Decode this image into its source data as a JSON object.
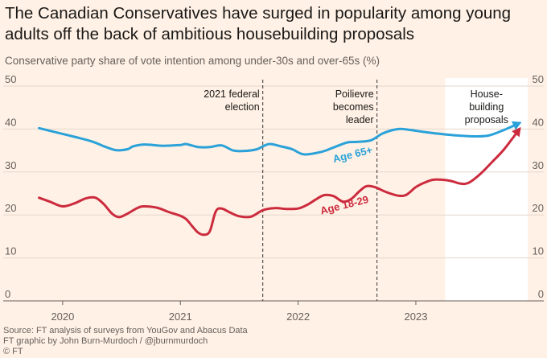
{
  "title": "The Canadian Conservatives have surged in popularity among young adults off the back of ambitious housebuilding proposals",
  "subtitle": "Conservative party share of vote intention among under-30s and over-65s (%)",
  "footer": {
    "source": "Source: FT analysis of surveys from YouGov and Abacus Data",
    "credit": "FT graphic by John Burn-Murdoch / @jburnmurdoch",
    "copyright": "© FT"
  },
  "colors": {
    "background": "#fff1e5",
    "highlight_band": "#ffffff",
    "age_65_plus": "#2aa2d9",
    "age_18_29": "#cc2b3e",
    "grid": "#e3d7cc",
    "axis_text": "#66605c"
  },
  "chart_data": {
    "type": "line",
    "xlim": [
      2019.7,
      2023.95
    ],
    "ylim": [
      0,
      50
    ],
    "y_ticks": [
      0,
      10,
      20,
      30,
      40,
      50
    ],
    "x_ticks": [
      {
        "value": 2020,
        "label": "2020"
      },
      {
        "value": 2021,
        "label": "2021"
      },
      {
        "value": 2022,
        "label": "2022"
      },
      {
        "value": 2023,
        "label": "2023"
      }
    ],
    "grid": true,
    "annotations": [
      {
        "x": 2021.7,
        "lines": [
          "2021 federal",
          "election"
        ],
        "style": "dashed-line"
      },
      {
        "x": 2022.67,
        "lines": [
          "Poilievre",
          "becomes",
          "leader"
        ],
        "style": "dashed-line"
      },
      {
        "x": 2023.25,
        "lines": [
          "House-",
          "building",
          "proposals"
        ],
        "style": "highlight-band",
        "x_end": 2023.95
      }
    ],
    "series": [
      {
        "name": "Age 65+",
        "color_key": "age_65_plus",
        "x": [
          2019.8,
          2019.95,
          2020.1,
          2020.25,
          2020.35,
          2020.45,
          2020.55,
          2020.6,
          2020.7,
          2020.85,
          2021.0,
          2021.05,
          2021.15,
          2021.25,
          2021.35,
          2021.45,
          2021.55,
          2021.65,
          2021.75,
          2021.85,
          2021.95,
          2022.05,
          2022.2,
          2022.3,
          2022.42,
          2022.5,
          2022.62,
          2022.72,
          2022.85,
          2022.95,
          2023.05,
          2023.2,
          2023.35,
          2023.5,
          2023.62,
          2023.75,
          2023.88
        ],
        "y": [
          40.2,
          39.2,
          38.2,
          37.1,
          36.0,
          35.1,
          35.3,
          36.0,
          36.4,
          36.1,
          36.3,
          36.5,
          35.8,
          35.8,
          36.2,
          35.0,
          34.9,
          35.3,
          36.5,
          36.0,
          35.3,
          34.1,
          34.7,
          35.7,
          36.9,
          37.0,
          37.4,
          39.0,
          40.0,
          39.8,
          39.4,
          38.9,
          38.5,
          38.3,
          38.5,
          39.8,
          41.4
        ]
      },
      {
        "name": "Age 18-29",
        "color_key": "age_18_29",
        "x": [
          2019.8,
          2019.9,
          2020.0,
          2020.1,
          2020.2,
          2020.28,
          2020.35,
          2020.42,
          2020.48,
          2020.55,
          2020.62,
          2020.68,
          2020.8,
          2020.9,
          2021.0,
          2021.05,
          2021.1,
          2021.15,
          2021.2,
          2021.25,
          2021.3,
          2021.35,
          2021.42,
          2021.5,
          2021.6,
          2021.7,
          2021.8,
          2021.9,
          2022.0,
          2022.08,
          2022.15,
          2022.22,
          2022.3,
          2022.38,
          2022.45,
          2022.52,
          2022.58,
          2022.65,
          2022.75,
          2022.85,
          2022.92,
          2023.0,
          2023.08,
          2023.15,
          2023.22,
          2023.3,
          2023.38,
          2023.45,
          2023.55,
          2023.65,
          2023.75,
          2023.88
        ],
        "y": [
          24.0,
          23.0,
          22.0,
          22.7,
          23.9,
          24.0,
          22.5,
          20.3,
          19.5,
          20.3,
          21.4,
          22.0,
          21.7,
          20.7,
          19.8,
          19.0,
          17.4,
          15.9,
          15.4,
          16.2,
          20.8,
          21.5,
          20.6,
          19.7,
          19.6,
          21.1,
          21.6,
          21.4,
          21.5,
          22.4,
          23.6,
          24.6,
          24.4,
          23.1,
          23.7,
          25.5,
          26.7,
          26.5,
          25.3,
          24.5,
          24.7,
          26.5,
          27.6,
          28.2,
          28.2,
          27.9,
          27.3,
          27.5,
          29.6,
          32.4,
          35.3,
          40.0
        ]
      }
    ],
    "series_labels": [
      {
        "text": "Age 65+",
        "color_key": "age_65_plus",
        "x": 2022.47,
        "y": 33.3
      },
      {
        "text": "Age 18-29",
        "color_key": "age_18_29",
        "x": 2022.4,
        "y": 21.5
      }
    ]
  }
}
